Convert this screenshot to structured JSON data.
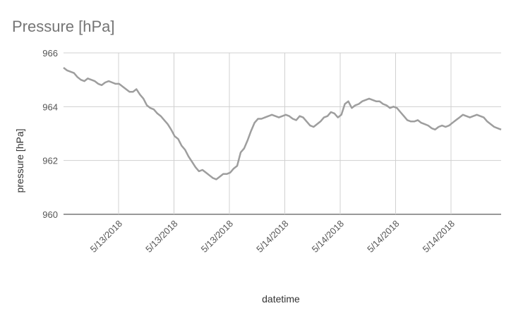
{
  "chart_data": {
    "type": "line",
    "title": "Pressure [hPa]",
    "xlabel": "datetime",
    "ylabel": "pressure [hPa]",
    "ylim": [
      960,
      966
    ],
    "yticks": [
      "960",
      "962",
      "964",
      "966"
    ],
    "xticks": [
      "5/13/2018",
      "5/13/2018",
      "5/13/2018",
      "5/14/2018",
      "5/14/2018",
      "5/14/2018",
      "5/14/2018"
    ],
    "grid": true,
    "legend": "none",
    "colors": {
      "line": "#9e9e9e",
      "grid": "#d0d0d0",
      "title": "#757575"
    },
    "series": [
      {
        "values": [
          965.45,
          965.35,
          965.3,
          965.25,
          965.1,
          965.0,
          964.95,
          965.05,
          965.0,
          964.95,
          964.85,
          964.8,
          964.9,
          964.95,
          964.9,
          964.85,
          964.85,
          964.75,
          964.65,
          964.55,
          964.55,
          964.65,
          964.45,
          964.3,
          964.05,
          963.95,
          963.9,
          963.75,
          963.65,
          963.5,
          963.35,
          963.15,
          962.9,
          962.8,
          962.55,
          962.4,
          962.15,
          961.95,
          961.75,
          961.6,
          961.65,
          961.55,
          961.45,
          961.35,
          961.3,
          961.4,
          961.5,
          961.5,
          961.55,
          961.7,
          961.8,
          962.3,
          962.45,
          962.75,
          963.1,
          963.4,
          963.55,
          963.55,
          963.6,
          963.65,
          963.7,
          963.65,
          963.6,
          963.65,
          963.7,
          963.65,
          963.55,
          963.5,
          963.65,
          963.6,
          963.45,
          963.3,
          963.25,
          963.35,
          963.45,
          963.6,
          963.65,
          963.8,
          963.75,
          963.6,
          963.7,
          964.1,
          964.2,
          963.95,
          964.05,
          964.1,
          964.2,
          964.25,
          964.3,
          964.25,
          964.2,
          964.2,
          964.1,
          964.05,
          963.95,
          964.0,
          963.95,
          963.8,
          963.65,
          963.5,
          963.45,
          963.45,
          963.5,
          963.4,
          963.35,
          963.3,
          963.2,
          963.15,
          963.25,
          963.3,
          963.25,
          963.3,
          963.4,
          963.5,
          963.6,
          963.7,
          963.65,
          963.6,
          963.65,
          963.7,
          963.65,
          963.6,
          963.45,
          963.35,
          963.25,
          963.2,
          963.15
        ]
      }
    ]
  }
}
